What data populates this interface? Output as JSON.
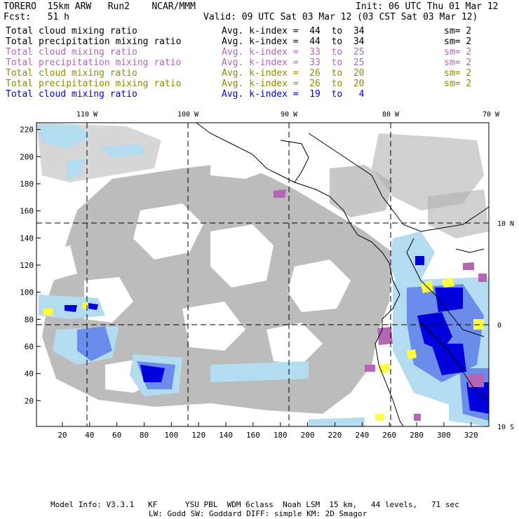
{
  "header": {
    "model": "TORERO  15km ARW   Run2    NCAR/MMM",
    "init": "Init: 06 UTC Thu 01 Mar 12",
    "fcst": "Fcst:   51 h",
    "valid": "Valid: 09 UTC Sat 03 Mar 12 (03 CST Sat 03 Mar 12)"
  },
  "legend": [
    {
      "field": "Total cloud mixing ratio",
      "kidx": "Avg. k-index =  44  to  34",
      "sm": "sm= 2",
      "color": "#000000"
    },
    {
      "field": "Total precipitation mixing ratio",
      "kidx": "Avg. k-index =  44  to  34",
      "sm": "sm= 2",
      "color": "#000000"
    },
    {
      "field": "Total cloud mixing ratio",
      "kidx": "Avg. k-index =  33  to  25",
      "sm": "sm= 2",
      "color": "#b466b4"
    },
    {
      "field": "Total precipitation mixing ratio",
      "kidx": "Avg. k-index =  33  to  25",
      "sm": "sm= 2",
      "color": "#b466b4"
    },
    {
      "field": "Total cloud mixing ratio",
      "kidx": "Avg. k-index =  26  to  20",
      "sm": "sm= 2",
      "color": "#8c8c00"
    },
    {
      "field": "Total precipitation mixing ratio",
      "kidx": "Avg. k-index =  26  to  20",
      "sm": "sm= 2",
      "color": "#8c8c00"
    },
    {
      "field": "Total cloud mixing ratio",
      "kidx": "Avg. k-index =  19  to   4",
      "sm": "",
      "color": "#0000dc"
    }
  ],
  "chart_data": {
    "type": "heatmap",
    "x_ticks": [
      20,
      40,
      60,
      80,
      100,
      120,
      140,
      160,
      180,
      200,
      220,
      240,
      260,
      280,
      300,
      320
    ],
    "y_ticks": [
      20,
      40,
      60,
      80,
      100,
      120,
      140,
      160,
      180,
      200,
      220
    ],
    "xlim": [
      1,
      333
    ],
    "ylim": [
      1,
      225
    ],
    "lon_labels": [
      "110 W",
      "100 W",
      "90 W",
      "80 W",
      "70 W"
    ],
    "lat_labels": [
      "10 N",
      "0",
      "10 S"
    ],
    "colors": {
      "gray": "#a8a8a8",
      "light_blue": "#b4dcf0",
      "blue": "#0000dc",
      "mid_blue": "#5a78e6",
      "purple": "#b466b4",
      "yellow": "#ffff3c"
    }
  },
  "footer": {
    "line1": "Model Info: V3.3.1   KF      YSU PBL  WDM 6class  Noah LSM  15 km,   44 levels,   71 sec",
    "line2": "LW: Godd SW: Goddard DIFF: simple KM: 2D Smagor"
  }
}
